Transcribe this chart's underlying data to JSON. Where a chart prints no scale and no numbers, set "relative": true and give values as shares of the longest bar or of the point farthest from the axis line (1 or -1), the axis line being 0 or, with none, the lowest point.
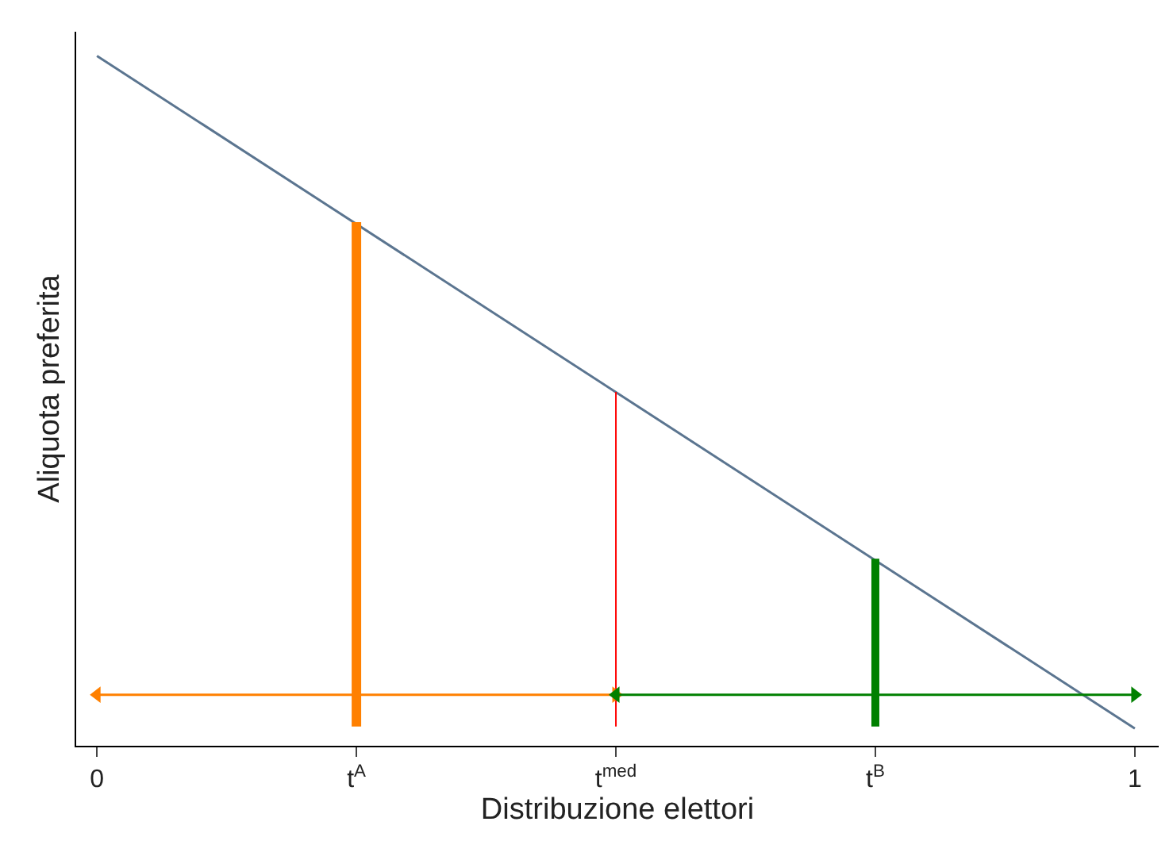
{
  "chart_data": {
    "type": "line",
    "relative": true,
    "xlabel": "Distribuzione elettori",
    "ylabel": "Aliquota preferita",
    "xlim": [
      -0.02,
      1.023
    ],
    "xticks": [
      0,
      {
        "value": 0.25,
        "label": "t$^{A}$"
      },
      {
        "value": 0.5,
        "label": "t$^{med}$"
      },
      {
        "value": 0.75,
        "label": "t$^{B}$"
      },
      1
    ],
    "marker": "none",
    "line_style": "solid",
    "series": [
      {
        "x": [
          0,
          1
        ],
        "values": [
          1,
          0.025
        ],
        "color": "#5b7590"
      },
      {
        "x": [
          0.25,
          0.25
        ],
        "values": [
          0.028,
          0.759
        ],
        "color": "#ff8000"
      },
      {
        "x": [
          0.5,
          0.5
        ],
        "values": [
          0.028,
          0.513
        ],
        "color": "#ff0000"
      },
      {
        "x": [
          0.75,
          0.75
        ],
        "values": [
          0.028,
          0.271
        ],
        "color": "#008000"
      },
      {
        "x": [
          0,
          0.5
        ],
        "values": [
          0.074,
          0.074
        ],
        "color": "#ff8000",
        "marker": "triangle"
      },
      {
        "x": [
          0.5,
          1
        ],
        "values": [
          0.074,
          0.074
        ],
        "color": "#008000",
        "marker": "triangle"
      }
    ]
  }
}
